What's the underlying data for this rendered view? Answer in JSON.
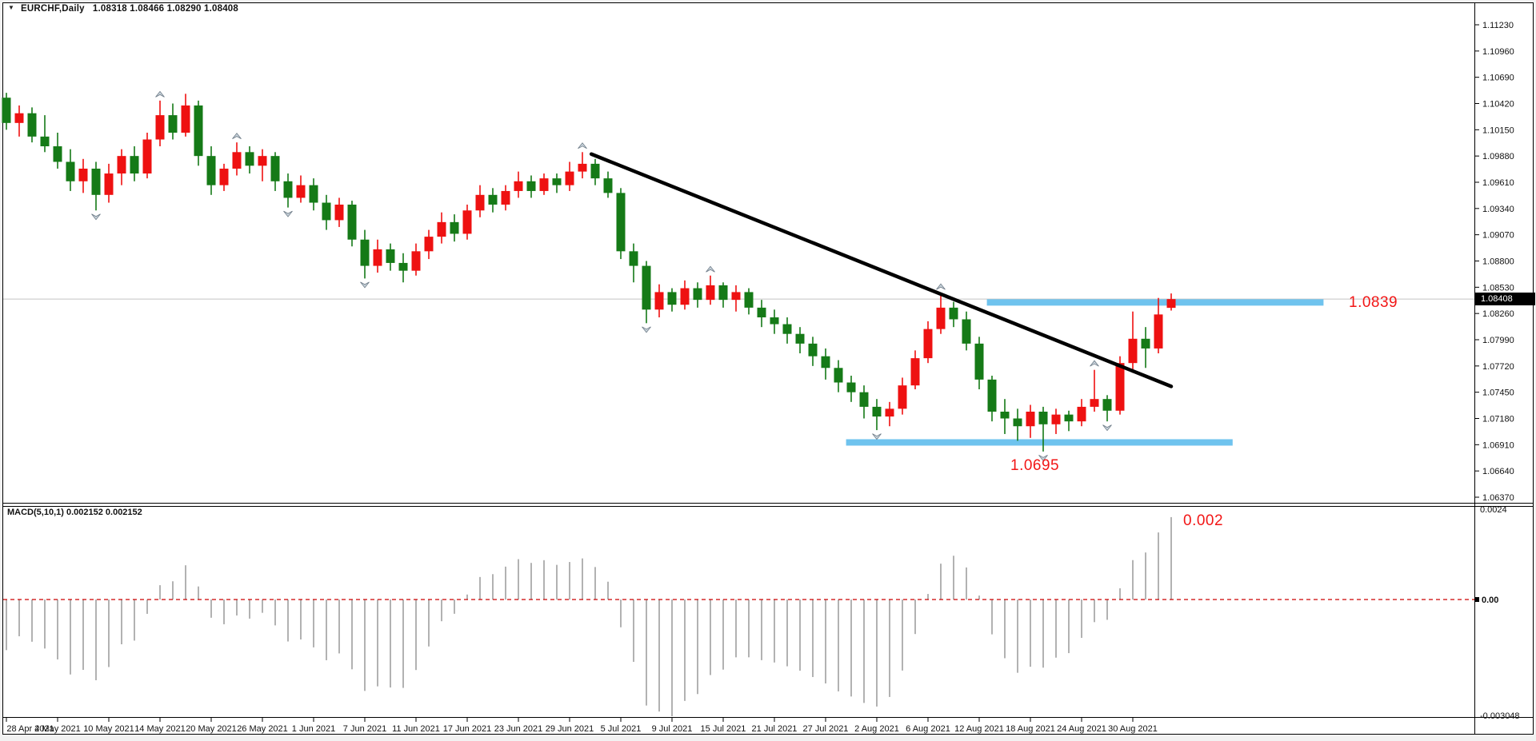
{
  "window": {
    "header_symbol_period": "EURCHF,Daily",
    "header_ohlc": "1.08318 1.08466 1.08290 1.08408"
  },
  "annotations": {
    "resistance_label": "1.0839",
    "support_label": "1.0695",
    "macd_value_label": "0.002"
  },
  "macd_panel": {
    "indicator_label": "MACD(5,10,1) 0.002152 0.002152",
    "axis_max": "0.0024",
    "axis_zero": "0.00",
    "axis_min": "-0.003048"
  },
  "price_axis": {
    "current_price": "1.08408",
    "labels": [
      "1.11230",
      "1.10960",
      "1.10690",
      "1.10420",
      "1.10150",
      "1.09880",
      "1.09610",
      "1.09340",
      "1.09070",
      "1.08800",
      "1.08530",
      "1.08260",
      "1.07990",
      "1.07720",
      "1.07450",
      "1.07180",
      "1.06910",
      "1.06640",
      "1.06370"
    ]
  },
  "time_axis": {
    "tick_step": 4,
    "labels": [
      "28 Apr 2021",
      "4 May 2021",
      "10 May 2021",
      "14 May 2021",
      "20 May 2021",
      "26 May 2021",
      "1 Jun 2021",
      "7 Jun 2021",
      "11 Jun 2021",
      "17 Jun 2021",
      "23 Jun 2021",
      "29 Jun 2021",
      "5 Jul 2021",
      "9 Jul 2021",
      "15 Jul 2021",
      "21 Jul 2021",
      "27 Jul 2021",
      "2 Aug 2021",
      "6 Aug 2021",
      "12 Aug 2021",
      "18 Aug 2021",
      "24 Aug 2021",
      "30 Aug 2021"
    ]
  },
  "colors": {
    "bull_candle": "#ee1111",
    "bear_candle": "#157a17",
    "band_blue": "#6fc3ee",
    "trendline": "#000000",
    "macd_bar": "#b2b2b2",
    "macd_zero_line": "#cc0000",
    "price_line": "#c4c4c4",
    "annotation_red": "#f21616",
    "fractal_fill": "#c9d3db",
    "fractal_stroke": "#6e7c88"
  },
  "chart_data": {
    "type": "candlestick",
    "symbol": "EURCHF",
    "timeframe": "Daily",
    "title": "EURCHF,Daily 1.08318 1.08466 1.08290 1.08408",
    "price_axis_top": 1.1123,
    "price_axis_bottom": 1.0637,
    "current_price": 1.08408,
    "ohlc": [
      [
        1.1048,
        1.1053,
        1.1015,
        1.1022
      ],
      [
        1.1022,
        1.104,
        1.1008,
        1.1032
      ],
      [
        1.1032,
        1.1038,
        1.1002,
        1.1008
      ],
      [
        1.1008,
        1.103,
        1.0992,
        1.0998
      ],
      [
        1.0998,
        1.1012,
        1.0975,
        1.0982
      ],
      [
        1.0982,
        1.0995,
        1.0952,
        1.0962
      ],
      [
        1.0962,
        1.0985,
        1.095,
        1.0975
      ],
      [
        1.0975,
        1.0982,
        1.0932,
        1.0948
      ],
      [
        1.0948,
        1.098,
        1.094,
        1.097
      ],
      [
        1.097,
        1.0995,
        1.0958,
        1.0988
      ],
      [
        1.0988,
        1.0998,
        1.0962,
        1.097
      ],
      [
        1.097,
        1.1012,
        1.0965,
        1.1005
      ],
      [
        1.1005,
        1.1045,
        1.0998,
        1.103
      ],
      [
        1.103,
        1.1042,
        1.1005,
        1.1012
      ],
      [
        1.1012,
        1.1052,
        1.1008,
        1.104
      ],
      [
        1.104,
        1.1045,
        1.0978,
        1.0988
      ],
      [
        1.0988,
        1.0998,
        1.0948,
        1.0958
      ],
      [
        1.0958,
        1.098,
        1.0952,
        1.0975
      ],
      [
        1.0975,
        1.1002,
        1.0968,
        1.0992
      ],
      [
        1.0992,
        1.0998,
        1.097,
        1.0978
      ],
      [
        1.0978,
        1.0995,
        1.0962,
        1.0988
      ],
      [
        1.0988,
        1.0992,
        1.0952,
        1.0962
      ],
      [
        1.0962,
        1.097,
        1.0935,
        1.0945
      ],
      [
        1.0945,
        1.0968,
        1.094,
        1.0958
      ],
      [
        1.0958,
        1.0965,
        1.0932,
        1.094
      ],
      [
        1.094,
        1.0948,
        1.0912,
        1.0922
      ],
      [
        1.0922,
        1.0945,
        1.0915,
        1.0938
      ],
      [
        1.0938,
        1.0942,
        1.0895,
        1.0902
      ],
      [
        1.0902,
        1.0912,
        1.0862,
        1.0875
      ],
      [
        1.0875,
        1.0902,
        1.0868,
        1.0892
      ],
      [
        1.0892,
        1.0898,
        1.087,
        1.0878
      ],
      [
        1.0878,
        1.0888,
        1.0858,
        1.087
      ],
      [
        1.087,
        1.0898,
        1.0865,
        1.089
      ],
      [
        1.089,
        1.0912,
        1.0882,
        1.0905
      ],
      [
        1.0905,
        1.093,
        1.0898,
        1.092
      ],
      [
        1.092,
        1.0928,
        1.09,
        1.0908
      ],
      [
        1.0908,
        1.0938,
        1.0902,
        1.0932
      ],
      [
        1.0932,
        1.0958,
        1.0925,
        1.0948
      ],
      [
        1.0948,
        1.0955,
        1.093,
        1.0938
      ],
      [
        1.0938,
        1.0958,
        1.0932,
        1.0952
      ],
      [
        1.0952,
        1.0972,
        1.0945,
        1.0962
      ],
      [
        1.0962,
        1.0968,
        1.0945,
        1.0952
      ],
      [
        1.0952,
        1.097,
        1.0948,
        1.0965
      ],
      [
        1.0965,
        1.097,
        1.095,
        1.0958
      ],
      [
        1.0958,
        1.0982,
        1.0952,
        1.0972
      ],
      [
        1.0972,
        1.0992,
        1.0965,
        1.098
      ],
      [
        1.098,
        1.0985,
        1.0958,
        1.0965
      ],
      [
        1.0965,
        1.0972,
        1.0945,
        1.095
      ],
      [
        1.095,
        1.0955,
        1.0882,
        1.089
      ],
      [
        1.089,
        1.0898,
        1.0858,
        1.0875
      ],
      [
        1.0875,
        1.088,
        1.0816,
        1.083
      ],
      [
        1.083,
        1.0856,
        1.0822,
        1.0848
      ],
      [
        1.0848,
        1.0852,
        1.0828,
        1.0835
      ],
      [
        1.0835,
        1.086,
        1.083,
        1.0852
      ],
      [
        1.0852,
        1.0858,
        1.0832,
        1.084
      ],
      [
        1.084,
        1.0865,
        1.0835,
        1.0855
      ],
      [
        1.0855,
        1.0858,
        1.0832,
        1.084
      ],
      [
        1.084,
        1.0855,
        1.0828,
        1.0848
      ],
      [
        1.0848,
        1.0852,
        1.0825,
        1.0832
      ],
      [
        1.0832,
        1.084,
        1.0812,
        1.0822
      ],
      [
        1.0822,
        1.083,
        1.0805,
        1.0815
      ],
      [
        1.0815,
        1.0822,
        1.0795,
        1.0805
      ],
      [
        1.0805,
        1.0812,
        1.0785,
        1.0795
      ],
      [
        1.0795,
        1.0802,
        1.0772,
        1.0782
      ],
      [
        1.0782,
        1.079,
        1.0758,
        1.077
      ],
      [
        1.077,
        1.0778,
        1.0745,
        1.0755
      ],
      [
        1.0755,
        1.0762,
        1.0735,
        1.0745
      ],
      [
        1.0745,
        1.0752,
        1.0718,
        1.073
      ],
      [
        1.073,
        1.0738,
        1.0706,
        1.072
      ],
      [
        1.072,
        1.0735,
        1.071,
        1.0728
      ],
      [
        1.0728,
        1.076,
        1.0722,
        1.0752
      ],
      [
        1.0752,
        1.0788,
        1.0748,
        1.078
      ],
      [
        1.078,
        1.0818,
        1.0775,
        1.081
      ],
      [
        1.081,
        1.0847,
        1.0805,
        1.0832
      ],
      [
        1.0832,
        1.0838,
        1.0812,
        1.082
      ],
      [
        1.082,
        1.0828,
        1.0788,
        1.0795
      ],
      [
        1.0795,
        1.0802,
        1.0748,
        1.0758
      ],
      [
        1.0758,
        1.0762,
        1.0715,
        1.0725
      ],
      [
        1.0725,
        1.0738,
        1.0702,
        1.0718
      ],
      [
        1.0718,
        1.0728,
        1.0695,
        1.071
      ],
      [
        1.071,
        1.0732,
        1.0698,
        1.0725
      ],
      [
        1.0725,
        1.073,
        1.0684,
        1.0712
      ],
      [
        1.0712,
        1.0728,
        1.0702,
        1.0722
      ],
      [
        1.0722,
        1.0726,
        1.0705,
        1.0715
      ],
      [
        1.0715,
        1.0738,
        1.071,
        1.073
      ],
      [
        1.073,
        1.0768,
        1.0725,
        1.0738
      ],
      [
        1.0738,
        1.0742,
        1.0715,
        1.0726
      ],
      [
        1.0726,
        1.0782,
        1.0722,
        1.0775
      ],
      [
        1.0775,
        1.0828,
        1.0765,
        1.08
      ],
      [
        1.08,
        1.0812,
        1.077,
        1.079
      ],
      [
        1.079,
        1.0842,
        1.0785,
        1.0825
      ],
      [
        1.08318,
        1.08466,
        1.0829,
        1.08408
      ]
    ],
    "levels": {
      "resistance": {
        "price": 1.0839,
        "i1": 76.6,
        "i2": 102.9
      },
      "support": {
        "price": 1.0695,
        "i1": 65.6,
        "i2": 95.8
      }
    },
    "trendline": {
      "i1": 45.7,
      "price1": 1.099,
      "i2": 91.0,
      "price2": 1.0751
    },
    "fractals": {
      "up": [
        12,
        18,
        45,
        55,
        73,
        85
      ],
      "down": [
        7,
        22,
        28,
        50,
        68,
        81,
        86
      ]
    },
    "macd": {
      "type": "histogram",
      "params": [
        5,
        10,
        1
      ],
      "last_value": 0.002152,
      "signal_value": 0.002152,
      "min_value": -0.003048,
      "axis_max": 0.0024
    }
  }
}
